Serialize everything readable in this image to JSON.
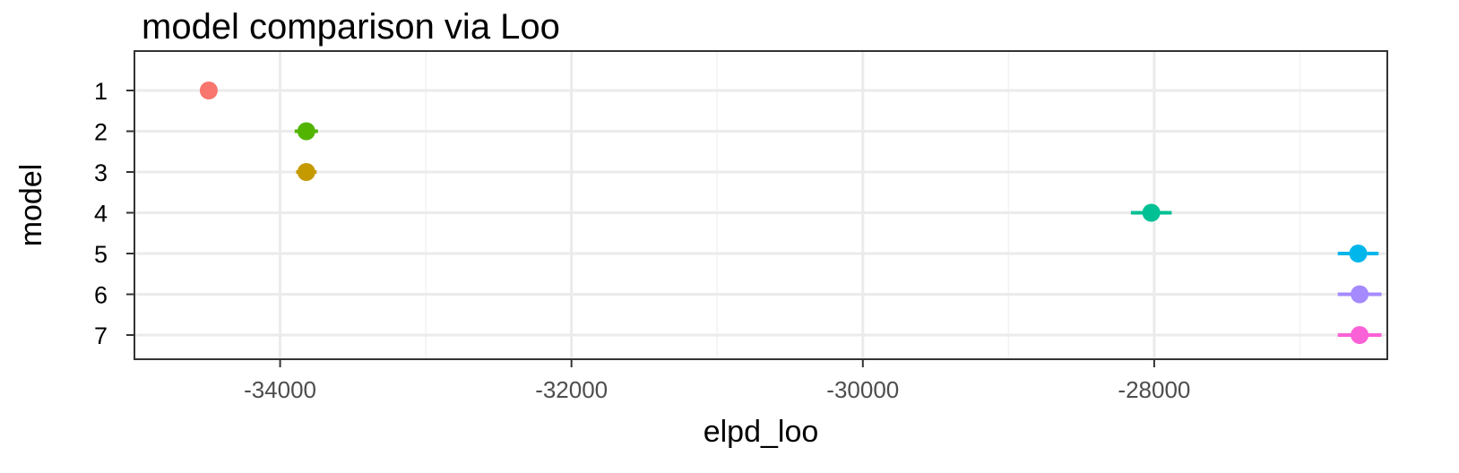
{
  "chart_data": {
    "type": "scatter",
    "title": "model comparison via Loo",
    "xlabel": "elpd_loo",
    "ylabel": "model",
    "xlim": [
      -35000,
      -26400
    ],
    "x_ticks": [
      -34000,
      -32000,
      -30000,
      -28000
    ],
    "x_tick_labels": [
      "-34000",
      "-32000",
      "-30000",
      "-28000"
    ],
    "x_minor_ticks": [
      -33000,
      -31000,
      -29000,
      -27000
    ],
    "y_categories": [
      "1",
      "2",
      "3",
      "4",
      "5",
      "6",
      "7"
    ],
    "grid": true,
    "legend": "none",
    "points": [
      {
        "model": "1",
        "elpd_loo": -34490,
        "se": 0,
        "color": "#F8766D"
      },
      {
        "model": "2",
        "elpd_loo": -33820,
        "se": 80,
        "color": "#53B400"
      },
      {
        "model": "3",
        "elpd_loo": -33820,
        "se": 70,
        "color": "#C49A00"
      },
      {
        "model": "4",
        "elpd_loo": -28020,
        "se": 140,
        "color": "#00C094"
      },
      {
        "model": "5",
        "elpd_loo": -26600,
        "se": 140,
        "color": "#00B6EB"
      },
      {
        "model": "6",
        "elpd_loo": -26590,
        "se": 150,
        "color": "#A58AFF"
      },
      {
        "model": "7",
        "elpd_loo": -26590,
        "se": 150,
        "color": "#FB61D7"
      }
    ]
  }
}
